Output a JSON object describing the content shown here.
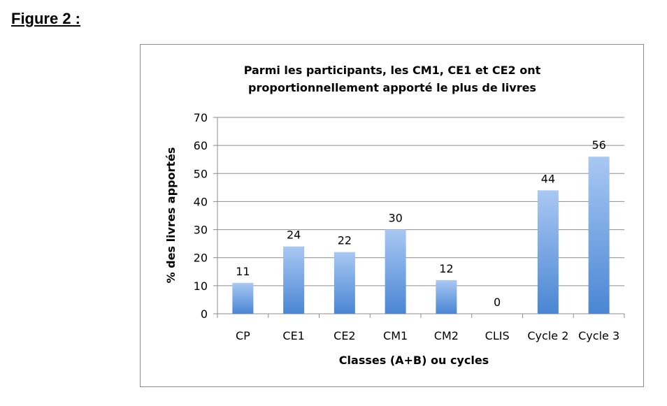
{
  "figure_label": "Figure 2 :",
  "chart_data": {
    "type": "bar",
    "title": "Parmi les participants, les CM1, CE1 et CE2 ont proportionnellement apporté le plus de livres",
    "title_lines": [
      "Parmi les participants, les CM1, CE1 et CE2 ont",
      "proportionnellement apporté le plus de livres"
    ],
    "xlabel": "Classes (A+B) ou cycles",
    "ylabel": "% des livres apportés",
    "categories": [
      "CP",
      "CE1",
      "CE2",
      "CM1",
      "CM2",
      "CLIS",
      "Cycle 2",
      "Cycle 3"
    ],
    "values": [
      11,
      24,
      22,
      30,
      12,
      0,
      44,
      56
    ],
    "ylim": [
      0,
      70
    ],
    "yticks": [
      0,
      10,
      20,
      30,
      40,
      50,
      60,
      70
    ],
    "grid": true,
    "legend": "none",
    "bar_color_top": "#a9c8f3",
    "bar_color_bottom": "#4a86d4"
  }
}
